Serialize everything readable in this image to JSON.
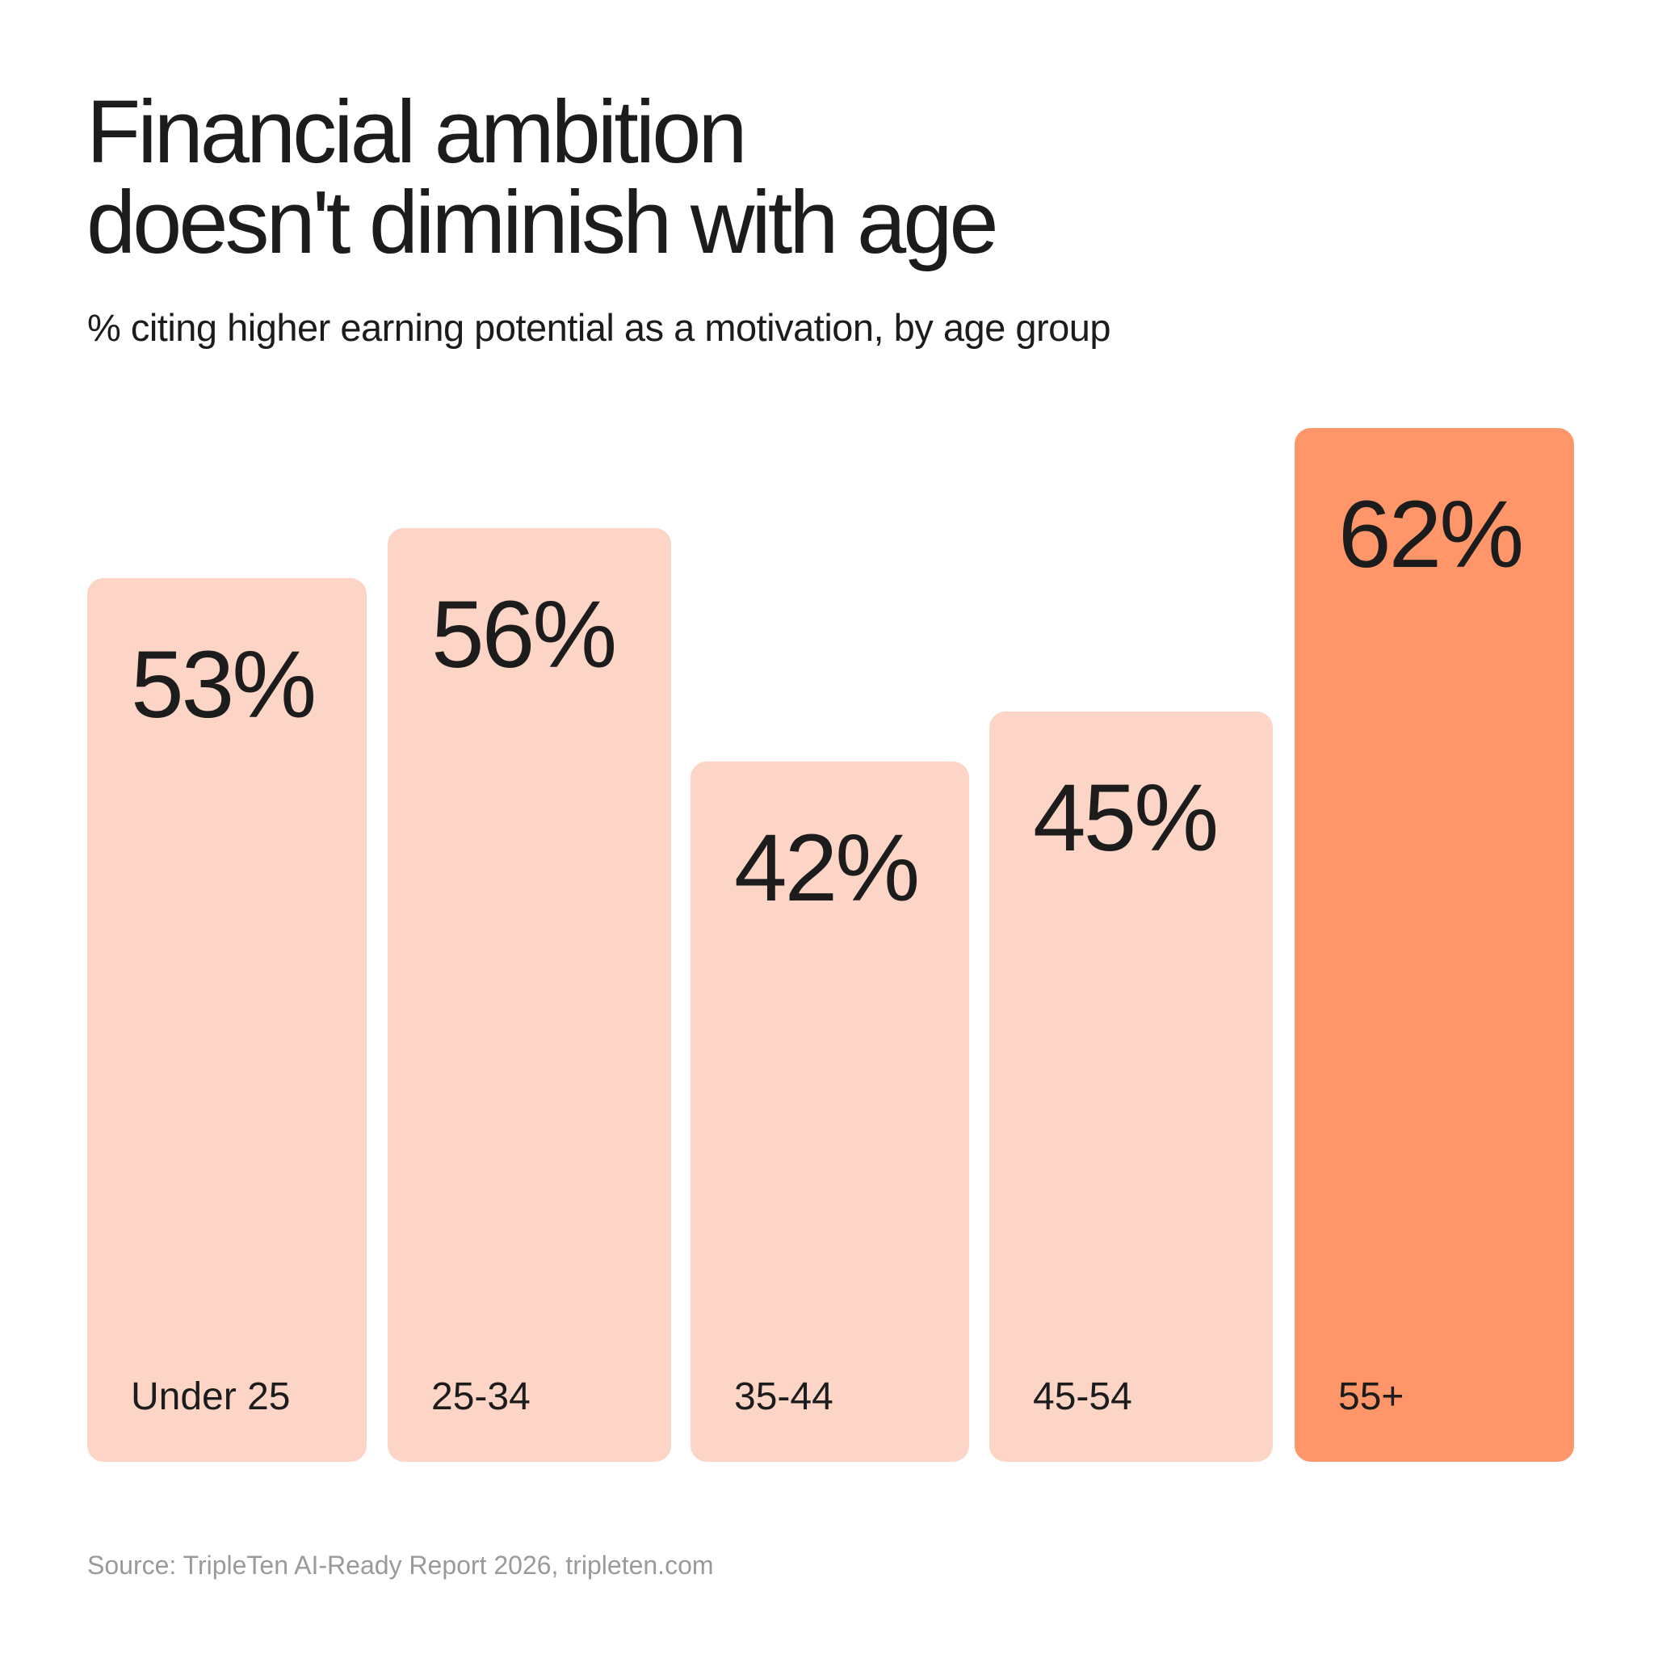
{
  "title_lines": [
    "Financial ambition",
    "doesn't diminish with age"
  ],
  "subtitle": "% citing higher earning potential as a motivation, by age group",
  "source": "Source: TripleTen AI-Ready Report 2026, tripleten.com",
  "colors": {
    "bar": "#fdd5c7",
    "highlight": "#ff9669",
    "text": "#1c1c1c",
    "source_text": "#9a9a9a"
  },
  "chart_data": {
    "type": "bar",
    "title": "Financial ambition doesn't diminish with age",
    "subtitle": "% citing higher earning potential as a motivation, by age group",
    "categories": [
      "Under 25",
      "25-34",
      "35-44",
      "45-54",
      "55+"
    ],
    "values": [
      53,
      56,
      42,
      45,
      62
    ],
    "value_labels": [
      "53%",
      "56%",
      "42%",
      "45%",
      "62%"
    ],
    "highlight": "55+",
    "unit": "%",
    "grid": false,
    "legend": "none"
  }
}
